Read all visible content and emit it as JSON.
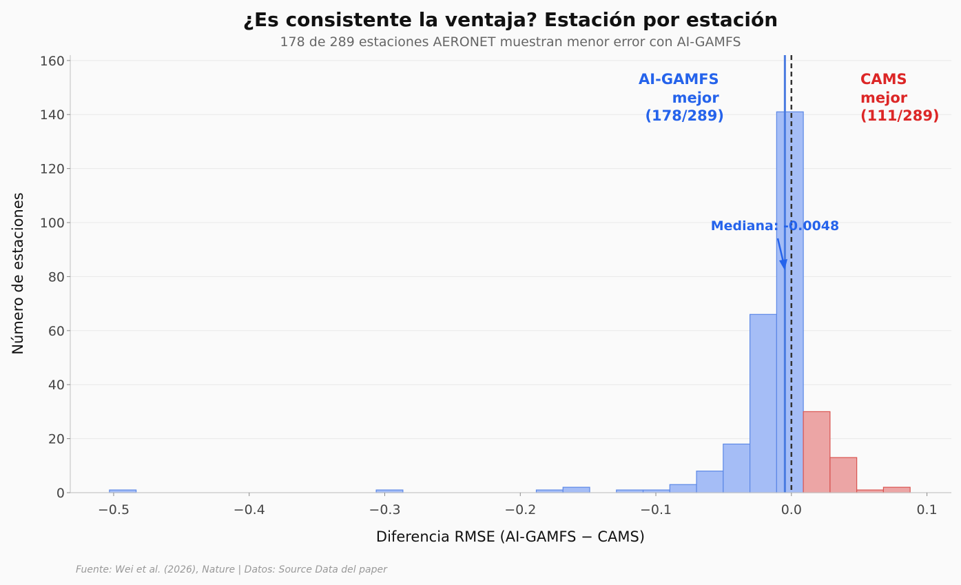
{
  "chart_data": {
    "type": "bar",
    "title": "¿Es consistente la ventaja? Estación por estación",
    "subtitle": "178 de 289 estaciones AERONET muestran menor error con AI-GAMFS",
    "xlabel": "Diferencia RMSE (AI-GAMFS − CAMS)",
    "ylabel": "Número de estaciones",
    "xlim": [
      -0.532,
      0.118
    ],
    "ylim": [
      0,
      162
    ],
    "xticks": [
      -0.5,
      -0.4,
      -0.3,
      -0.2,
      -0.1,
      0.0,
      0.1
    ],
    "xtick_labels": [
      "−0.5",
      "−0.4",
      "−0.3",
      "−0.2",
      "−0.1",
      "0.0",
      "0.1"
    ],
    "yticks": [
      0,
      20,
      40,
      60,
      80,
      100,
      120,
      140,
      160
    ],
    "ytick_labels": [
      "0",
      "20",
      "40",
      "60",
      "80",
      "100",
      "120",
      "140",
      "160"
    ],
    "grid": "y",
    "bins": [
      {
        "x0": -0.5031,
        "x1": -0.4834,
        "count": 1,
        "group": "ai"
      },
      {
        "x0": -0.3063,
        "x1": -0.2866,
        "count": 1,
        "group": "ai"
      },
      {
        "x0": -0.1882,
        "x1": -0.1685,
        "count": 1,
        "group": "ai"
      },
      {
        "x0": -0.1685,
        "x1": -0.1488,
        "count": 2,
        "group": "ai"
      },
      {
        "x0": -0.1291,
        "x1": -0.1094,
        "count": 1,
        "group": "ai"
      },
      {
        "x0": -0.1094,
        "x1": -0.0897,
        "count": 1,
        "group": "ai"
      },
      {
        "x0": -0.0897,
        "x1": -0.07,
        "count": 3,
        "group": "ai"
      },
      {
        "x0": -0.07,
        "x1": -0.0503,
        "count": 8,
        "group": "ai"
      },
      {
        "x0": -0.0503,
        "x1": -0.0306,
        "count": 18,
        "group": "ai"
      },
      {
        "x0": -0.0306,
        "x1": -0.0109,
        "count": 66,
        "group": "ai"
      },
      {
        "x0": -0.0109,
        "x1": 0.0088,
        "count": 141,
        "group": "ai"
      },
      {
        "x0": 0.0088,
        "x1": 0.0285,
        "count": 30,
        "group": "cams"
      },
      {
        "x0": 0.0285,
        "x1": 0.0482,
        "count": 13,
        "group": "cams"
      },
      {
        "x0": 0.0482,
        "x1": 0.0679,
        "count": 1,
        "group": "cams"
      },
      {
        "x0": 0.0679,
        "x1": 0.0876,
        "count": 2,
        "group": "cams"
      }
    ],
    "median": -0.0048,
    "median_label": "Mediana: -0.0048",
    "reference_line": 0.0,
    "annotations": {
      "ai_better": [
        "AI-GAMFS",
        "mejor",
        "(178/289)"
      ],
      "cams_better": [
        "CAMS",
        "mejor",
        "(111/289)"
      ]
    },
    "colors": {
      "ai_fill": "#a5bdf6",
      "ai_edge": "#5b87e6",
      "cams_fill": "#eca5a5",
      "cams_edge": "#d9534f",
      "median_line": "#4a7be0",
      "zero_line": "#333333",
      "blue_text": "#2563eb",
      "red_text": "#dc2626"
    }
  },
  "source": "Fuente: Wei et al. (2026), Nature | Datos: Source Data del paper"
}
